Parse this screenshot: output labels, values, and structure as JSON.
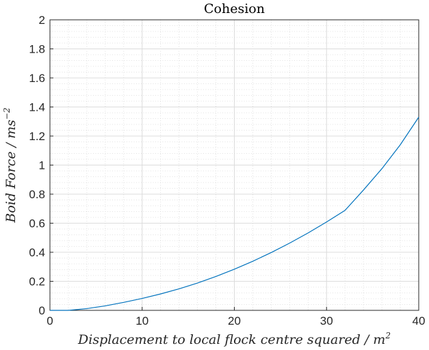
{
  "chart_data": {
    "type": "line",
    "title": "Cohesion",
    "xlabel_main": "Displacement to local flock centre squared / m",
    "xlabel_sup": "2",
    "ylabel_main": "Boid Force / ms",
    "ylabel_sup": "−2",
    "xlim": [
      0,
      40
    ],
    "ylim": [
      0,
      2
    ],
    "xticks": [
      0,
      10,
      20,
      30,
      40
    ],
    "yticks": [
      0,
      0.2,
      0.4,
      0.6,
      0.8,
      1,
      1.2,
      1.4,
      1.6,
      1.8,
      2
    ],
    "grid": "on (major and minor)",
    "series": [
      {
        "color": "#0072BD",
        "x": [
          0,
          2,
          4,
          6,
          8,
          10,
          12,
          14,
          16,
          18,
          20,
          22,
          24,
          26,
          28,
          30,
          32,
          34,
          36,
          38,
          40
        ],
        "y": [
          0,
          0,
          0.012,
          0.031,
          0.055,
          0.082,
          0.113,
          0.148,
          0.188,
          0.233,
          0.283,
          0.338,
          0.398,
          0.463,
          0.533,
          0.608,
          0.688,
          0.828,
          0.975,
          1.14,
          1.33
        ]
      }
    ]
  }
}
